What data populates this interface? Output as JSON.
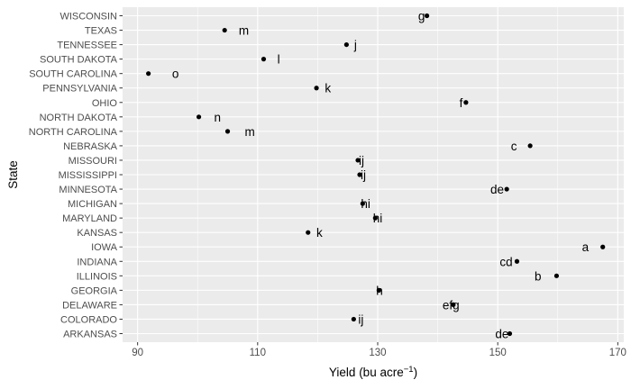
{
  "chart_data": {
    "type": "scatter",
    "xlabel": "Yield (bu acre",
    "xlabel_sup": "−1",
    "xlabel_close": ")",
    "ylabel": "State",
    "xlim": [
      87.5,
      171
    ],
    "xticks": [
      90,
      110,
      130,
      150,
      170
    ],
    "grid": true,
    "colors": {
      "panel": "#ebebeb",
      "grid_major": "#ffffff",
      "point": "#000000",
      "tick_text": "#4d4d4d"
    },
    "points": [
      {
        "state": "WISCONSIN",
        "yield": 138.2,
        "letter": "g",
        "letter_x": 137.3
      },
      {
        "state": "TEXAS",
        "yield": 104.5,
        "letter": "m",
        "letter_x": 107.7
      },
      {
        "state": "TENNESSEE",
        "yield": 124.8,
        "letter": "j",
        "letter_x": 126.3
      },
      {
        "state": "SOUTH DAKOTA",
        "yield": 111.0,
        "letter": "l",
        "letter_x": 113.5
      },
      {
        "state": "SOUTH CAROLINA",
        "yield": 91.8,
        "letter": "o",
        "letter_x": 96.3
      },
      {
        "state": "PENNSYLVANIA",
        "yield": 119.8,
        "letter": "k",
        "letter_x": 121.7
      },
      {
        "state": "OHIO",
        "yield": 144.7,
        "letter": "f",
        "letter_x": 143.9
      },
      {
        "state": "NORTH DAKOTA",
        "yield": 100.2,
        "letter": "n",
        "letter_x": 103.3
      },
      {
        "state": "NORTH CAROLINA",
        "yield": 105.0,
        "letter": "m",
        "letter_x": 108.7
      },
      {
        "state": "NEBRASKA",
        "yield": 155.4,
        "letter": "c",
        "letter_x": 152.7
      },
      {
        "state": "MISSOURI",
        "yield": 126.7,
        "letter": "ij",
        "letter_x": 127.3
      },
      {
        "state": "MISSISSIPPI",
        "yield": 127.0,
        "letter": "ij",
        "letter_x": 127.6
      },
      {
        "state": "MINNESOTA",
        "yield": 151.5,
        "letter": "de",
        "letter_x": 149.9
      },
      {
        "state": "MICHIGAN",
        "yield": 127.5,
        "letter": "hi",
        "letter_x": 128.0
      },
      {
        "state": "MARYLAND",
        "yield": 129.6,
        "letter": "hi",
        "letter_x": 130.0
      },
      {
        "state": "KANSAS",
        "yield": 118.4,
        "letter": "k",
        "letter_x": 120.3
      },
      {
        "state": "IOWA",
        "yield": 167.5,
        "letter": "a",
        "letter_x": 164.6
      },
      {
        "state": "INDIANA",
        "yield": 153.2,
        "letter": "cd",
        "letter_x": 151.4
      },
      {
        "state": "ILLINOIS",
        "yield": 159.8,
        "letter": "b",
        "letter_x": 156.7
      },
      {
        "state": "GEORGIA",
        "yield": 130.2,
        "letter": "h",
        "letter_x": 130.3
      },
      {
        "state": "DELAWARE",
        "yield": 142.6,
        "letter": "efg",
        "letter_x": 142.2
      },
      {
        "state": "COLORADO",
        "yield": 126.0,
        "letter": "ij",
        "letter_x": 127.2
      },
      {
        "state": "ARKANSAS",
        "yield": 152.0,
        "letter": "de",
        "letter_x": 150.7
      }
    ]
  }
}
